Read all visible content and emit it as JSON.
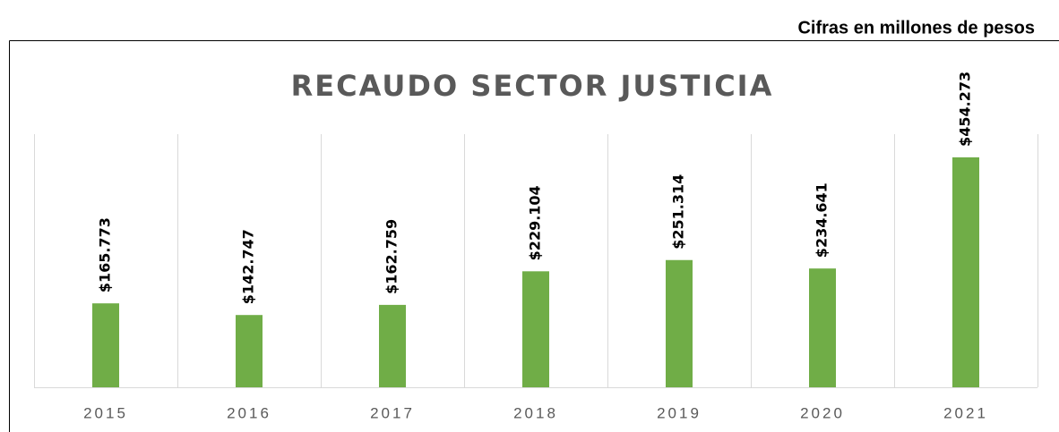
{
  "note_top": "Cifras en millones de pesos",
  "chart_data": {
    "type": "bar",
    "title": "RECAUDO SECTOR JUSTICIA",
    "categories": [
      "2015",
      "2016",
      "2017",
      "2018",
      "2019",
      "2020",
      "2021"
    ],
    "values": [
      165773,
      142747,
      162759,
      229104,
      251314,
      234641,
      454273
    ],
    "value_labels": [
      "$165.773",
      "$142.747",
      "$162.759",
      "$229.104",
      "$251.314",
      "$234.641",
      "$454.273"
    ],
    "color": "#70ad47",
    "ylim": [
      0,
      500000
    ]
  }
}
